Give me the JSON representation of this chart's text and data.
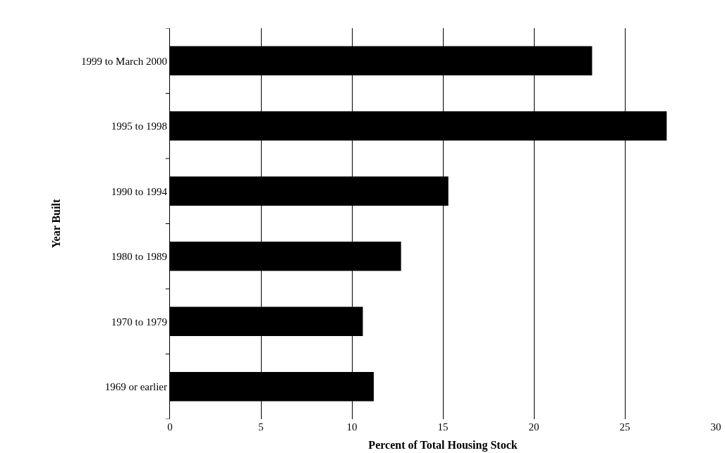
{
  "chart_data": {
    "type": "bar",
    "orientation": "horizontal",
    "xlabel": "Percent of Total Housing Stock",
    "ylabel": "Year Built",
    "categories": [
      "1999 to March 2000",
      "1995 to 1998",
      "1990 to 1994",
      "1980 to 1989",
      "1970 to 1979",
      "1969 or earlier"
    ],
    "values": [
      23.2,
      27.3,
      15.3,
      12.7,
      10.6,
      11.2
    ],
    "color": "#000000",
    "xlim": [
      0,
      30
    ],
    "xticks": [
      0,
      5,
      10,
      15,
      20,
      25,
      30
    ],
    "grid": "x"
  }
}
